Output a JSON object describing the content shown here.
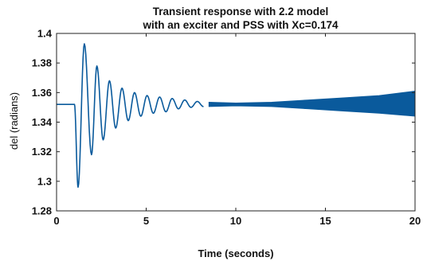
{
  "chart_data": {
    "type": "line",
    "title_lines": [
      "Transient response with 2.2 model",
      "with an exciter and PSS with Xc=0.174"
    ],
    "xlabel": "Time (seconds)",
    "ylabel": "del (radians)",
    "xlim": [
      0,
      20
    ],
    "ylim": [
      1.28,
      1.4
    ],
    "x_ticks": [
      0,
      5,
      10,
      15,
      20
    ],
    "x_tick_labels": [
      "0",
      "5",
      "10",
      "15",
      "20"
    ],
    "y_ticks": [
      1.28,
      1.3,
      1.32,
      1.34,
      1.36,
      1.38,
      1.4
    ],
    "y_tick_labels": [
      "1.28",
      "1.3",
      "1.32",
      "1.34",
      "1.36",
      "1.38",
      "1.4"
    ],
    "grid": false,
    "line_color": "#0a5a9c",
    "series": [
      {
        "steady_state": 1.352,
        "disturbance_time": 1.0,
        "peaks": [
          {
            "x": 1.0,
            "y": 1.352
          },
          {
            "x": 1.2,
            "y": 1.296
          },
          {
            "x": 1.55,
            "y": 1.393
          },
          {
            "x": 1.95,
            "y": 1.318
          },
          {
            "x": 2.25,
            "y": 1.378
          },
          {
            "x": 2.6,
            "y": 1.328
          },
          {
            "x": 2.95,
            "y": 1.368
          },
          {
            "x": 3.3,
            "y": 1.336
          },
          {
            "x": 3.65,
            "y": 1.363
          },
          {
            "x": 4.0,
            "y": 1.341
          },
          {
            "x": 4.35,
            "y": 1.36
          },
          {
            "x": 4.7,
            "y": 1.344
          },
          {
            "x": 5.05,
            "y": 1.358
          },
          {
            "x": 5.4,
            "y": 1.346
          },
          {
            "x": 5.75,
            "y": 1.357
          },
          {
            "x": 6.1,
            "y": 1.347
          },
          {
            "x": 6.45,
            "y": 1.356
          },
          {
            "x": 6.8,
            "y": 1.349
          },
          {
            "x": 7.15,
            "y": 1.355
          },
          {
            "x": 7.5,
            "y": 1.35
          },
          {
            "x": 7.85,
            "y": 1.354
          },
          {
            "x": 8.2,
            "y": 1.3505
          }
        ],
        "envelope": [
          {
            "x": 8.5,
            "low": 1.3505,
            "high": 1.3535
          },
          {
            "x": 10,
            "low": 1.351,
            "high": 1.353
          },
          {
            "x": 12,
            "low": 1.3505,
            "high": 1.3535
          },
          {
            "x": 14,
            "low": 1.349,
            "high": 1.355
          },
          {
            "x": 16,
            "low": 1.3475,
            "high": 1.3565
          },
          {
            "x": 18,
            "low": 1.346,
            "high": 1.358
          },
          {
            "x": 20,
            "low": 1.344,
            "high": 1.361
          }
        ]
      }
    ]
  }
}
